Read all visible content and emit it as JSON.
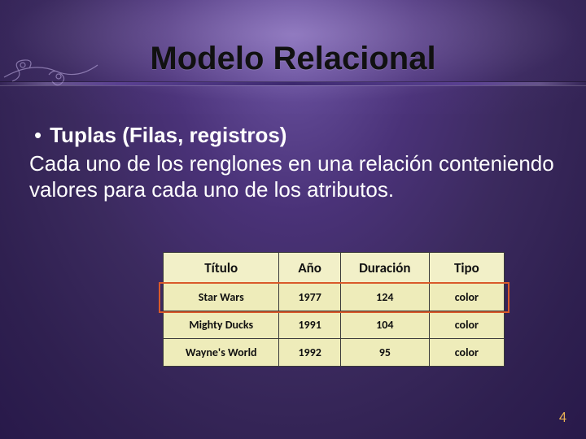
{
  "slide": {
    "title": "Modelo Relacional",
    "bullet_heading": "Tuplas (Filas, registros)",
    "body_text": "Cada uno de los renglones en una relación conteniendo valores para cada uno de los atributos.",
    "page_number": "4"
  },
  "table": {
    "columns": [
      "Título",
      "Año",
      "Duración",
      "Tipo"
    ],
    "rows": [
      [
        "Star Wars",
        "1977",
        "124",
        "color"
      ],
      [
        "Mighty Ducks",
        "1991",
        "104",
        "color"
      ],
      [
        "Wayne's World",
        "1992",
        "95",
        "color"
      ]
    ],
    "highlight_row_index": 0,
    "col_widths_pct": [
      34,
      18,
      26,
      22
    ],
    "bg_color": "#eeecba",
    "header_bg_color": "#f2f0c8",
    "border_color": "#3a3a3a",
    "highlight_border_color": "#d95a2b",
    "header_fontsize": 17,
    "cell_fontsize": 14
  },
  "theme": {
    "background_gradient": [
      "#6a52a0",
      "#4a3278",
      "#3b2a5e",
      "#2f2050",
      "#28194a"
    ],
    "title_color": "#111111",
    "body_text_color": "#ffffff",
    "page_number_color": "#e8b254",
    "ornament_color": "#a890d8"
  }
}
